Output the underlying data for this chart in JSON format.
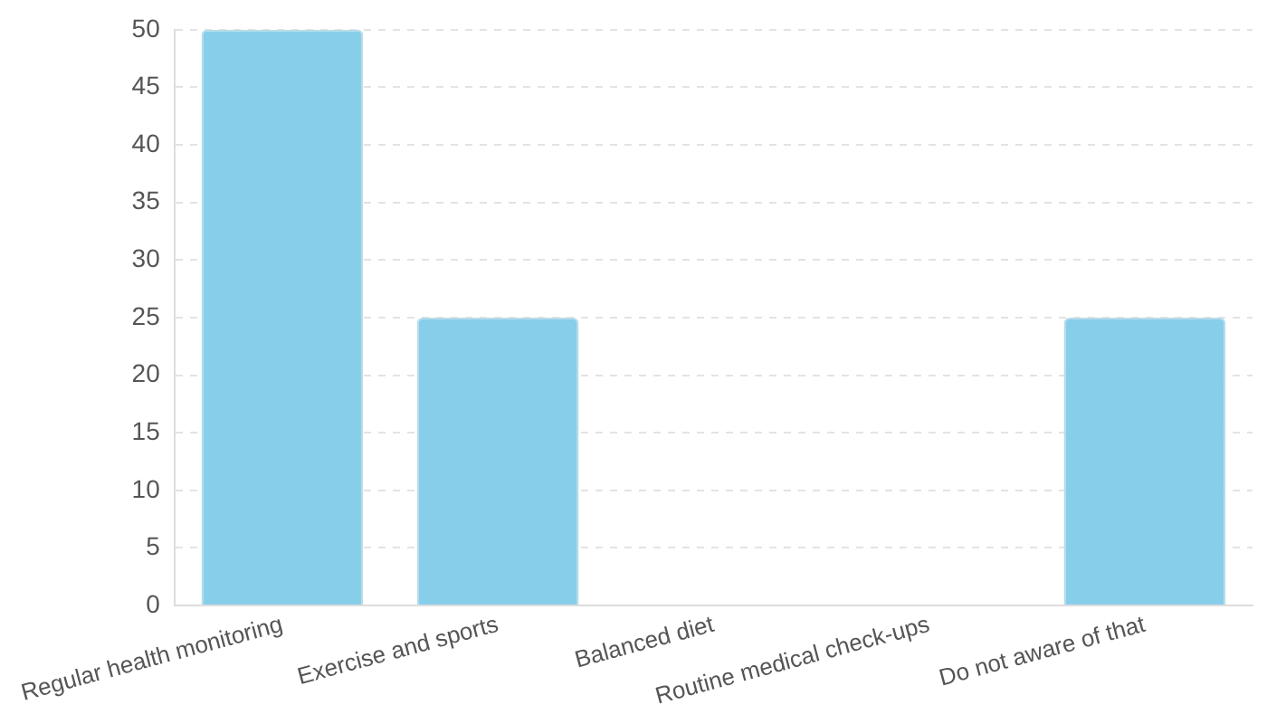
{
  "chart_data": {
    "type": "bar",
    "categories": [
      "Regular health monitoring",
      "Exercise and sports",
      "Balanced diet",
      "Routine medical check-ups",
      "Do not aware of that"
    ],
    "values": [
      50,
      25,
      0,
      0,
      25
    ],
    "color": "#87ceeb",
    "ylim": [
      0,
      50
    ],
    "yticks": [
      0,
      5,
      10,
      15,
      20,
      25,
      30,
      35,
      40,
      45,
      50
    ],
    "grid": "y"
  }
}
